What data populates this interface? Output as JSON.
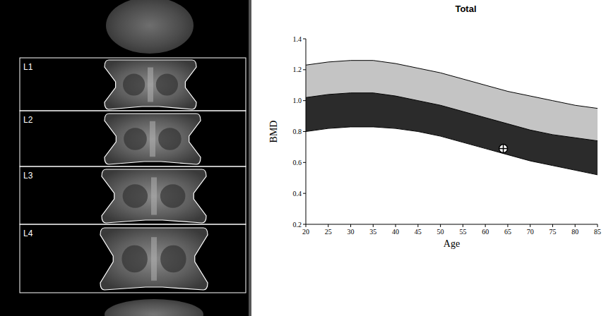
{
  "scan": {
    "labels": [
      "L1",
      "L2",
      "L3",
      "L4"
    ]
  },
  "chart_data": {
    "type": "area",
    "title": "Total",
    "x_label": "Age",
    "y_label": "BMD",
    "x": [
      20,
      25,
      30,
      35,
      40,
      45,
      50,
      55,
      60,
      65,
      70,
      75,
      80,
      85
    ],
    "xlim": [
      20,
      85
    ],
    "xticks": [
      20,
      25,
      30,
      35,
      40,
      45,
      50,
      55,
      60,
      65,
      70,
      75,
      80,
      85
    ],
    "ylim": [
      0.2,
      1.4
    ],
    "yticks": [
      0.2,
      0.4,
      0.6,
      0.8,
      {
        "value": 1,
        "label": "1.0"
      },
      1.2,
      1.4
    ],
    "grid": false,
    "series": [
      {
        "type": "area",
        "color": "#c4c4c4",
        "values": [
          1.23,
          1.25,
          1.26,
          1.26,
          1.24,
          1.21,
          1.18,
          1.14,
          1.1,
          1.06,
          1.03,
          1.0,
          0.97,
          0.95
        ]
      },
      {
        "type": "area",
        "color": "#2b2b2b",
        "values": [
          1.02,
          1.04,
          1.05,
          1.05,
          1.03,
          1.0,
          0.97,
          0.93,
          0.89,
          0.85,
          0.81,
          0.78,
          0.76,
          0.74
        ]
      },
      {
        "type": "area",
        "color": "#ffffff",
        "values": [
          0.8,
          0.82,
          0.83,
          0.83,
          0.82,
          0.8,
          0.77,
          0.73,
          0.69,
          0.65,
          0.61,
          0.58,
          0.55,
          0.52
        ]
      },
      {
        "type": "scatter",
        "color": "#ffffff",
        "marker": "circle-cross",
        "x": [
          64
        ],
        "values": [
          0.69
        ]
      }
    ]
  }
}
